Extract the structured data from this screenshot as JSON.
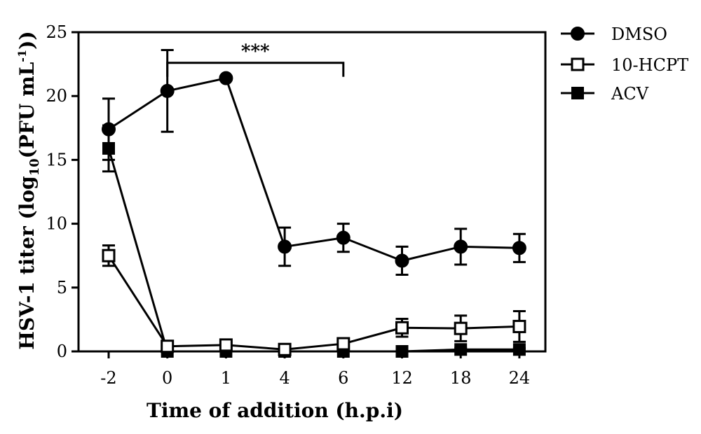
{
  "chart_data": {
    "type": "line",
    "categories": [
      "-2",
      "0",
      "1",
      "4",
      "6",
      "12",
      "18",
      "24"
    ],
    "xlabel": "Time of addition (h.p.i)",
    "ylabel": {
      "prefix": "HSV-1 titer (log",
      "sub": "10",
      "mid": "(PFU mL",
      "sup": "-1",
      "suffix": "))"
    },
    "ylim": [
      0,
      25
    ],
    "yticks": [
      0,
      5,
      10,
      15,
      20,
      25
    ],
    "legend_position": "right",
    "annotation": {
      "text": "***",
      "from_category": "0",
      "to_category": "6",
      "at_y": 22.6
    },
    "series": [
      {
        "name": "DMSO",
        "marker": "filled-circle",
        "values": [
          17.4,
          20.4,
          21.4,
          8.2,
          8.9,
          7.1,
          8.2,
          8.1
        ],
        "errors": [
          2.4,
          3.2,
          0.0,
          1.5,
          1.1,
          1.1,
          1.4,
          1.1
        ]
      },
      {
        "name": "10-HCPT",
        "marker": "open-square",
        "values": [
          7.5,
          0.4,
          0.5,
          0.15,
          0.6,
          1.85,
          1.8,
          1.95
        ],
        "errors": [
          0.8,
          0.2,
          0.2,
          0.15,
          0.3,
          0.7,
          1.0,
          1.2
        ]
      },
      {
        "name": "ACV",
        "marker": "filled-square",
        "values": [
          15.9,
          0.0,
          0.0,
          0.0,
          0.0,
          0.0,
          0.15,
          0.15
        ],
        "errors": [
          1.8,
          0.0,
          0.0,
          0.0,
          0.0,
          0.0,
          0.1,
          0.1
        ]
      }
    ]
  }
}
